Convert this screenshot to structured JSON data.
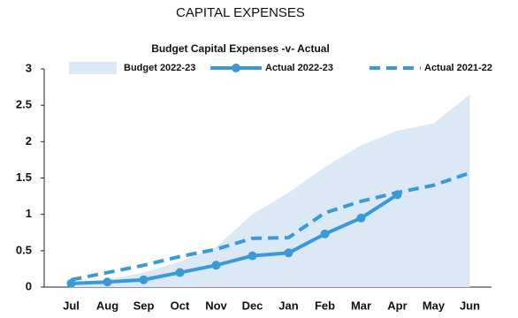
{
  "chart_data": {
    "type": "line",
    "title": "CAPITAL EXPENSES",
    "subtitle": "Budget Capital Expenses -v- Actual",
    "categories": [
      "Jul",
      "Aug",
      "Sep",
      "Oct",
      "Nov",
      "Dec",
      "Jan",
      "Feb",
      "Mar",
      "Apr",
      "May",
      "Jun"
    ],
    "series": [
      {
        "name": "Budget 2022-23",
        "color": "#dbe8f6",
        "fill": true,
        "values": [
          0.02,
          0.1,
          0.2,
          0.35,
          0.55,
          1.0,
          1.3,
          1.65,
          1.95,
          2.15,
          2.25,
          2.65
        ]
      },
      {
        "name": "Actual 2022-23",
        "color": "#3a9ad9",
        "marker": true,
        "values": [
          0.05,
          0.07,
          0.1,
          0.2,
          0.3,
          0.43,
          0.47,
          0.73,
          0.95,
          1.27,
          null,
          null
        ]
      },
      {
        "name": "Actual 2021-22",
        "color": "#3a9ad9",
        "dash": true,
        "values": [
          0.1,
          0.2,
          0.3,
          0.42,
          0.52,
          0.67,
          0.68,
          1.02,
          1.18,
          1.3,
          1.4,
          1.57
        ]
      }
    ],
    "ylim": [
      0,
      3
    ],
    "yticks": [
      0,
      0.5,
      1,
      1.5,
      2,
      2.5,
      3
    ],
    "legend": "top"
  }
}
